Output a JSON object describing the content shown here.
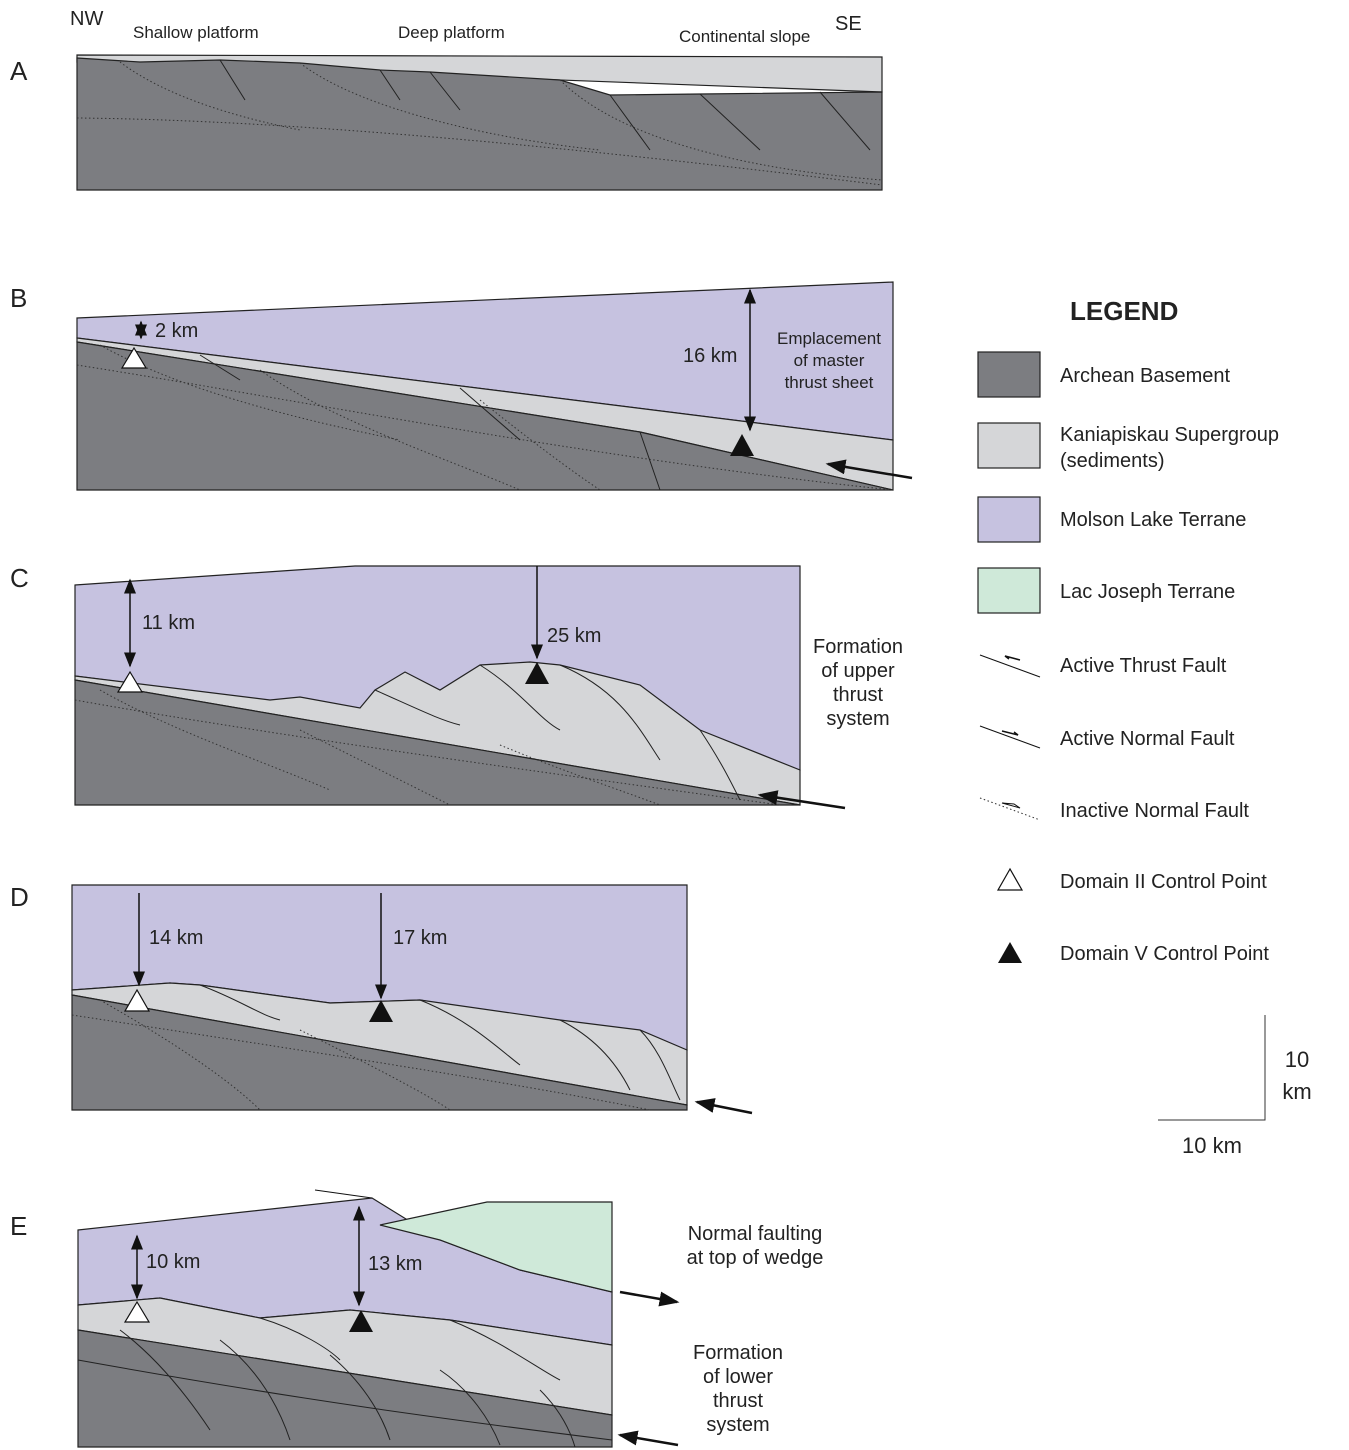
{
  "panels": [
    {
      "label": "A",
      "annotations": [
        "NW",
        "Shallow platform",
        "Deep platform",
        "Continental slope",
        "SE"
      ]
    },
    {
      "label": "B",
      "annotations": [
        "2 km",
        "16 km"
      ],
      "notes": [
        [
          "Emplacement",
          "of master",
          "thrust sheet"
        ]
      ]
    },
    {
      "label": "C",
      "annotations": [
        "11 km",
        "25 km"
      ],
      "notes": [
        [
          "Formation",
          "of upper",
          "thrust",
          "system"
        ]
      ]
    },
    {
      "label": "D",
      "annotations": [
        "14 km",
        "17 km"
      ]
    },
    {
      "label": "E",
      "annotations": [
        "10 km",
        "13 km"
      ],
      "notes": [
        [
          "Normal faulting",
          "at top of wedge"
        ],
        [
          "Formation",
          "of lower",
          "thrust",
          "system"
        ]
      ]
    }
  ],
  "legend": {
    "title": "LEGEND",
    "items": [
      [
        "Archean Basement"
      ],
      [
        "Kaniapiskau Supergroup",
        "(sediments)"
      ],
      [
        "Molson Lake Terrane"
      ],
      [
        "Lac Joseph Terrane"
      ],
      [
        "Active Thrust Fault"
      ],
      [
        "Active Normal Fault"
      ],
      [
        "Inactive Normal Fault"
      ],
      [
        "Domain II Control Point"
      ],
      [
        "Domain V Control Point"
      ]
    ]
  },
  "scale": {
    "vertical": [
      "10",
      "km"
    ],
    "horizontal": "10 km"
  }
}
